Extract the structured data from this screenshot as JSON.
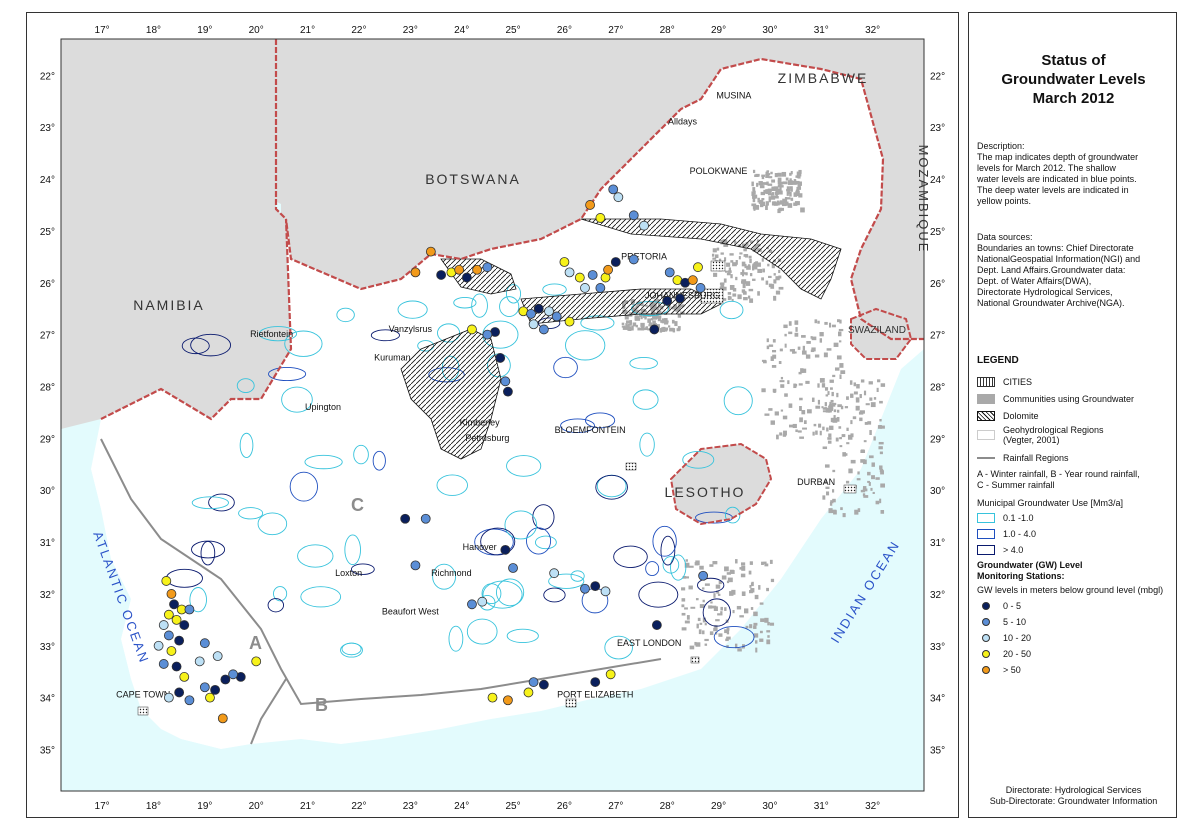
{
  "map": {
    "lon_ticks": [
      "17°",
      "18°",
      "19°",
      "20°",
      "21°",
      "22°",
      "23°",
      "24°",
      "25°",
      "26°",
      "27°",
      "28°",
      "29°",
      "30°",
      "31°",
      "32°"
    ],
    "lat_ticks": [
      "22°",
      "23°",
      "24°",
      "25°",
      "26°",
      "27°",
      "28°",
      "29°",
      "30°",
      "31°",
      "32°",
      "33°",
      "34°",
      "35°"
    ],
    "countries": [
      "NAMIBIA",
      "BOTSWANA",
      "ZIMBABWE",
      "MOZAMBIQUE",
      "SWAZILAND",
      "LESOTHO"
    ],
    "oceans": [
      "ATLANTIC OCEAN",
      "INDIAN OCEAN"
    ],
    "towns": [
      "MUSINA",
      "Alldays",
      "POLOKWANE",
      "PRETORIA",
      "JOHANNESBURG",
      "Rietfontein",
      "Vanzylsrus",
      "Kuruman",
      "Upington",
      "Kimberley",
      "Petrusburg",
      "BLOEMFONTEIN",
      "DURBAN",
      "Hanover",
      "Loxton",
      "Richmond",
      "Beaufort West",
      "EAST LONDON",
      "PORT ELIZABETH",
      "CAPE TOWN"
    ],
    "rainfall_regions": [
      "A",
      "B",
      "C"
    ],
    "colors": {
      "sea": "#e3fbfd",
      "foreign": "#dcdcdc",
      "land": "#ffffff",
      "border": "#c24b4b",
      "communities": "#a9a9a9",
      "gw_low": "#37c3dc",
      "gw_mid": "#1f4fbf",
      "gw_high": "#0a1a6e"
    },
    "stations": [
      {
        "lon": 18.25,
        "lat": 31.75,
        "c": 3
      },
      {
        "lon": 18.35,
        "lat": 32.0,
        "c": 4
      },
      {
        "lon": 18.4,
        "lat": 32.2,
        "c": 0
      },
      {
        "lon": 18.55,
        "lat": 32.3,
        "c": 3
      },
      {
        "lon": 18.3,
        "lat": 32.4,
        "c": 3
      },
      {
        "lon": 18.7,
        "lat": 32.3,
        "c": 1
      },
      {
        "lon": 18.45,
        "lat": 32.5,
        "c": 3
      },
      {
        "lon": 18.2,
        "lat": 32.6,
        "c": 2
      },
      {
        "lon": 18.6,
        "lat": 32.6,
        "c": 0
      },
      {
        "lon": 18.3,
        "lat": 32.8,
        "c": 1
      },
      {
        "lon": 18.5,
        "lat": 32.9,
        "c": 0
      },
      {
        "lon": 18.1,
        "lat": 33.0,
        "c": 2
      },
      {
        "lon": 18.35,
        "lat": 33.1,
        "c": 3
      },
      {
        "lon": 18.2,
        "lat": 33.35,
        "c": 1
      },
      {
        "lon": 18.45,
        "lat": 33.4,
        "c": 0
      },
      {
        "lon": 18.6,
        "lat": 33.6,
        "c": 3
      },
      {
        "lon": 18.5,
        "lat": 33.9,
        "c": 0
      },
      {
        "lon": 18.3,
        "lat": 34.0,
        "c": 2
      },
      {
        "lon": 19.0,
        "lat": 33.8,
        "c": 1
      },
      {
        "lon": 19.1,
        "lat": 34.0,
        "c": 3
      },
      {
        "lon": 19.2,
        "lat": 33.85,
        "c": 0
      },
      {
        "lon": 19.4,
        "lat": 33.65,
        "c": 0
      },
      {
        "lon": 19.25,
        "lat": 33.2,
        "c": 2
      },
      {
        "lon": 19.0,
        "lat": 32.95,
        "c": 1
      },
      {
        "lon": 19.35,
        "lat": 34.4,
        "c": 4
      },
      {
        "lon": 19.7,
        "lat": 33.6,
        "c": 0
      },
      {
        "lon": 20.0,
        "lat": 33.3,
        "c": 3
      },
      {
        "lon": 18.7,
        "lat": 34.05,
        "c": 1
      },
      {
        "lon": 18.9,
        "lat": 33.3,
        "c": 2
      },
      {
        "lon": 19.55,
        "lat": 33.55,
        "c": 1
      },
      {
        "lon": 22.9,
        "lat": 30.55,
        "c": 0
      },
      {
        "lon": 23.3,
        "lat": 30.55,
        "c": 1
      },
      {
        "lon": 23.1,
        "lat": 31.45,
        "c": 1
      },
      {
        "lon": 24.85,
        "lat": 31.15,
        "c": 0
      },
      {
        "lon": 25.0,
        "lat": 31.5,
        "c": 1
      },
      {
        "lon": 25.8,
        "lat": 31.6,
        "c": 2
      },
      {
        "lon": 24.4,
        "lat": 32.15,
        "c": 2
      },
      {
        "lon": 24.2,
        "lat": 32.2,
        "c": 1
      },
      {
        "lon": 26.4,
        "lat": 31.9,
        "c": 1
      },
      {
        "lon": 26.6,
        "lat": 31.85,
        "c": 0
      },
      {
        "lon": 26.8,
        "lat": 31.95,
        "c": 2
      },
      {
        "lon": 27.8,
        "lat": 32.6,
        "c": 0
      },
      {
        "lon": 28.7,
        "lat": 31.65,
        "c": 1
      },
      {
        "lon": 25.4,
        "lat": 33.7,
        "c": 1
      },
      {
        "lon": 25.6,
        "lat": 33.75,
        "c": 0
      },
      {
        "lon": 25.3,
        "lat": 33.9,
        "c": 3
      },
      {
        "lon": 24.6,
        "lat": 34.0,
        "c": 3
      },
      {
        "lon": 24.9,
        "lat": 34.05,
        "c": 4
      },
      {
        "lon": 26.6,
        "lat": 33.7,
        "c": 0
      },
      {
        "lon": 26.9,
        "lat": 33.55,
        "c": 3
      },
      {
        "lon": 23.6,
        "lat": 25.85,
        "c": 0
      },
      {
        "lon": 23.8,
        "lat": 25.8,
        "c": 3
      },
      {
        "lon": 23.95,
        "lat": 25.75,
        "c": 4
      },
      {
        "lon": 24.1,
        "lat": 25.9,
        "c": 0
      },
      {
        "lon": 24.3,
        "lat": 25.75,
        "c": 4
      },
      {
        "lon": 24.5,
        "lat": 25.7,
        "c": 1
      },
      {
        "lon": 23.1,
        "lat": 25.8,
        "c": 4
      },
      {
        "lon": 23.4,
        "lat": 25.4,
        "c": 4
      },
      {
        "lon": 24.2,
        "lat": 26.9,
        "c": 3
      },
      {
        "lon": 24.65,
        "lat": 26.95,
        "c": 0
      },
      {
        "lon": 24.5,
        "lat": 27.0,
        "c": 1
      },
      {
        "lon": 25.2,
        "lat": 26.55,
        "c": 3
      },
      {
        "lon": 25.35,
        "lat": 26.6,
        "c": 1
      },
      {
        "lon": 25.5,
        "lat": 26.5,
        "c": 0
      },
      {
        "lon": 25.7,
        "lat": 26.55,
        "c": 2
      },
      {
        "lon": 25.85,
        "lat": 26.65,
        "c": 1
      },
      {
        "lon": 26.1,
        "lat": 26.75,
        "c": 3
      },
      {
        "lon": 25.4,
        "lat": 26.8,
        "c": 2
      },
      {
        "lon": 25.6,
        "lat": 26.9,
        "c": 1
      },
      {
        "lon": 24.75,
        "lat": 27.45,
        "c": 0
      },
      {
        "lon": 24.85,
        "lat": 27.9,
        "c": 1
      },
      {
        "lon": 24.9,
        "lat": 28.1,
        "c": 0
      },
      {
        "lon": 26.0,
        "lat": 25.6,
        "c": 3
      },
      {
        "lon": 26.1,
        "lat": 25.8,
        "c": 2
      },
      {
        "lon": 26.3,
        "lat": 25.9,
        "c": 3
      },
      {
        "lon": 26.55,
        "lat": 25.85,
        "c": 1
      },
      {
        "lon": 26.8,
        "lat": 25.9,
        "c": 3
      },
      {
        "lon": 26.7,
        "lat": 26.1,
        "c": 1
      },
      {
        "lon": 26.85,
        "lat": 25.75,
        "c": 4
      },
      {
        "lon": 27.0,
        "lat": 25.6,
        "c": 0
      },
      {
        "lon": 27.35,
        "lat": 25.55,
        "c": 1
      },
      {
        "lon": 26.4,
        "lat": 26.1,
        "c": 2
      },
      {
        "lon": 28.05,
        "lat": 25.8,
        "c": 1
      },
      {
        "lon": 28.2,
        "lat": 25.95,
        "c": 3
      },
      {
        "lon": 28.35,
        "lat": 26.0,
        "c": 0
      },
      {
        "lon": 28.5,
        "lat": 25.95,
        "c": 4
      },
      {
        "lon": 28.6,
        "lat": 25.7,
        "c": 3
      },
      {
        "lon": 28.65,
        "lat": 26.1,
        "c": 1
      },
      {
        "lon": 28.25,
        "lat": 26.3,
        "c": 0
      },
      {
        "lon": 28.0,
        "lat": 26.35,
        "c": 0
      },
      {
        "lon": 27.75,
        "lat": 26.9,
        "c": 0
      },
      {
        "lon": 26.95,
        "lat": 24.2,
        "c": 1
      },
      {
        "lon": 27.05,
        "lat": 24.35,
        "c": 2
      },
      {
        "lon": 26.7,
        "lat": 24.75,
        "c": 3
      },
      {
        "lon": 26.5,
        "lat": 24.5,
        "c": 4
      },
      {
        "lon": 27.35,
        "lat": 24.7,
        "c": 1
      },
      {
        "lon": 27.55,
        "lat": 24.9,
        "c": 2
      }
    ]
  },
  "legend": {
    "title_lines": [
      "Status of",
      "Groundwater Levels",
      "March 2012"
    ],
    "description_title": "Description:",
    "description": [
      "The map indicates depth of groundwater",
      "levels for March 2012. The shallow",
      "water levels are indicated in blue points.",
      "The deep water levels are indicated in",
      "yellow points."
    ],
    "sources_title": "Data sources:",
    "sources": [
      "Boundaries an towns: Chief Directorate",
      "NationalGeospatial Information(NGI) and",
      "Dept. Land Affairs.Groundwater data:",
      "Dept. of Water Affairs(DWA),",
      "Directorate Hydrological Services,",
      "National Groundwater Archive(NGA)."
    ],
    "heading": "LEGEND",
    "layers": {
      "cities": "CITIES",
      "communities": "Communities using Groundwater",
      "dolomite": "Dolomite",
      "geohydro": [
        "Geohydrological Regions",
        "(Vegter, 2001)"
      ],
      "rainfall": "Rainfall Regions",
      "rainfall_desc": [
        "A - Winter rainfall, B - Year round rainfall,",
        "C - Summer rainfall"
      ]
    },
    "municipal_title": "Municipal Groundwater Use [Mm3/a]",
    "municipal": [
      "0.1 -1.0",
      "1.0 - 4.0",
      "> 4.0"
    ],
    "gw_title": [
      "Groundwater (GW) Level",
      "Monitoring Stations:"
    ],
    "gw_subtitle": "GW levels in meters below ground level (mbgl)",
    "gw_classes": [
      {
        "label": "0 - 5",
        "color": "#0a1f5c"
      },
      {
        "label": "5 - 10",
        "color": "#5b8ed6"
      },
      {
        "label": "10 - 20",
        "color": "#bde0f5"
      },
      {
        "label": "20 - 50",
        "color": "#f7f21a"
      },
      {
        "label": "> 50",
        "color": "#f29a1a"
      }
    ],
    "footer": [
      "Directorate: Hydrological Services",
      "Sub-Directorate: Groundwater Information"
    ]
  }
}
